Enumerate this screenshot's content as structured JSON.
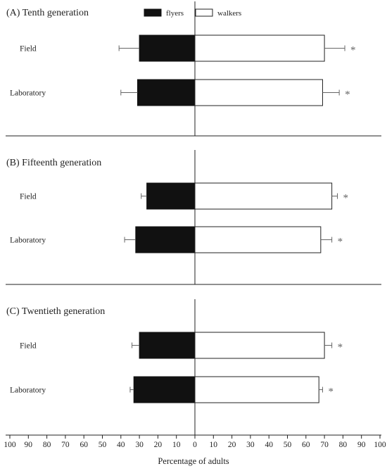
{
  "chart_data": {
    "type": "bar",
    "orientation": "horizontal-diverging",
    "xlabel": "Percentage of adults",
    "x_tick_labels": [
      "100",
      "90",
      "80",
      "70",
      "60",
      "50",
      "40",
      "30",
      "20",
      "10",
      "0",
      "10",
      "20",
      "30",
      "40",
      "50",
      "60",
      "70",
      "80",
      "90",
      "100"
    ],
    "xlim": [
      -100,
      100
    ],
    "legend": [
      {
        "name": "flyers",
        "color": "#111111"
      },
      {
        "name": "walkers",
        "color": "#ffffff"
      }
    ],
    "legend_placement": "top-center",
    "panels": [
      {
        "title": "(A)   Tenth generation",
        "categories": [
          "Field",
          "Laboratory"
        ],
        "series": [
          {
            "name": "flyers",
            "values": [
              30,
              31
            ],
            "errors": [
              11,
              9
            ]
          },
          {
            "name": "walkers",
            "values": [
              70,
              69
            ],
            "errors": [
              11,
              9
            ]
          }
        ],
        "annotations": [
          "*",
          "*"
        ]
      },
      {
        "title": "(B)   Fifteenth generation",
        "categories": [
          "Field",
          "Laboratory"
        ],
        "series": [
          {
            "name": "flyers",
            "values": [
              26,
              32
            ],
            "errors": [
              3,
              6
            ]
          },
          {
            "name": "walkers",
            "values": [
              74,
              68
            ],
            "errors": [
              3,
              6
            ]
          }
        ],
        "annotations": [
          "*",
          "*"
        ]
      },
      {
        "title": "(C)   Twentieth generation",
        "categories": [
          "Field",
          "Laboratory"
        ],
        "series": [
          {
            "name": "flyers",
            "values": [
              30,
              33
            ],
            "errors": [
              4,
              2
            ]
          },
          {
            "name": "walkers",
            "values": [
              70,
              67
            ],
            "errors": [
              4,
              2
            ]
          }
        ],
        "annotations": [
          "*",
          "*"
        ]
      }
    ]
  },
  "colors": {
    "flyers": "#111111",
    "walkers": "#ffffff",
    "axis": "#222222",
    "star": "#666666"
  }
}
